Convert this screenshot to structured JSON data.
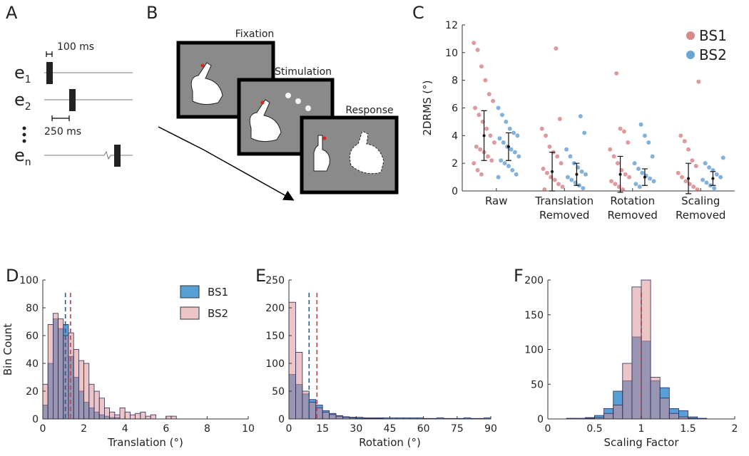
{
  "panel_labels": [
    "A",
    "B",
    "C",
    "D",
    "E",
    "F"
  ],
  "panel_a": {
    "scale_top": "100 ms",
    "scale_bottom": "250 ms",
    "rows": [
      {
        "base": "e",
        "sub": "1"
      },
      {
        "base": "e",
        "sub": "2"
      },
      {
        "base": "e",
        "sub": "n"
      }
    ]
  },
  "panel_b": {
    "stages": [
      "Fixation",
      "Stimulation",
      "Response"
    ]
  },
  "chart_data": [
    {
      "type": "strip",
      "ylabel": "2DRMS (°)",
      "ylim": [
        0,
        12
      ],
      "yticks": [
        0,
        2,
        4,
        6,
        8,
        10,
        12
      ],
      "categories": [
        [
          "Raw"
        ],
        [
          "Translation",
          "Removed"
        ],
        [
          "Rotation",
          "Removed"
        ],
        [
          "Scaling",
          "Removed"
        ]
      ],
      "legend": "upper right",
      "series": [
        {
          "name": "BS1",
          "color": "#c9565e",
          "points": [
            [
              10.7,
              10.2,
              9,
              8,
              7,
              6.5,
              6,
              5.5,
              5,
              4.5,
              4,
              3.5,
              3.2,
              3,
              2.8,
              2.5,
              2.2,
              2,
              1.5,
              1.2
            ],
            [
              10.3,
              5.2,
              4.5,
              4,
              3.2,
              2.8,
              2.5,
              2,
              1.6,
              1.3,
              1,
              0.8,
              0.5,
              0.3,
              0.1
            ],
            [
              8.5,
              4.5,
              4.3,
              3.5,
              3,
              2.5,
              2,
              1.5,
              1.2,
              1,
              0.7,
              0.5,
              0.3,
              0.1
            ],
            [
              7.9,
              4,
              3.6,
              3,
              2.2,
              1.8,
              1.3,
              1,
              0.7,
              0.5,
              0.3,
              0.1
            ]
          ],
          "means": [
            4,
            1.4,
            1.2,
            0.9
          ],
          "sds": [
            1.8,
            1.4,
            1.3,
            1.1
          ]
        },
        {
          "name": "BS2",
          "color": "#2f7fbf",
          "points": [
            [
              6,
              5.5,
              5,
              4.5,
              4.2,
              4,
              3.8,
              3.5,
              3.2,
              3,
              2.8,
              2.5,
              2.2,
              2,
              1.8,
              1.5,
              1.2,
              1
            ],
            [
              5.4,
              4.2,
              3,
              2.5,
              2,
              1.7,
              1.4,
              1.2,
              1,
              0.8,
              0.6,
              0.4,
              0.2
            ],
            [
              4.8,
              4,
              3.5,
              2.5,
              2,
              1.6,
              1.3,
              1.1,
              0.9,
              0.7,
              0.5,
              0.3
            ],
            [
              2.4,
              2,
              1.7,
              1.5,
              1.2,
              1,
              0.8,
              0.6,
              0.4,
              0.2
            ]
          ],
          "means": [
            3.2,
            1.2,
            1,
            0.9
          ],
          "sds": [
            1,
            0.8,
            0.6,
            0.5
          ]
        }
      ]
    },
    {
      "type": "histogram",
      "xlabel": "Translation (°)",
      "ylabel": "Bin Count",
      "xlim": [
        0,
        10
      ],
      "xticks": [
        0,
        2,
        4,
        6,
        8,
        10
      ],
      "ylim": [
        0,
        100
      ],
      "yticks": [
        0,
        20,
        40,
        60,
        80,
        100
      ],
      "legend": "upper right",
      "bins": [
        0,
        0.25,
        0.5,
        0.75,
        1,
        1.25,
        1.5,
        1.75,
        2,
        2.25,
        2.5,
        2.75,
        3,
        3.25,
        3.5,
        3.75,
        4,
        4.25,
        4.5,
        4.75,
        5,
        5.25,
        5.5,
        5.75,
        6,
        6.25,
        6.5,
        6.75,
        7,
        7.25,
        7.5,
        7.75,
        8
      ],
      "series": [
        {
          "name": "BS1",
          "color": "#3a8fd0",
          "mean": 1.1,
          "counts": [
            10,
            40,
            72,
            65,
            68,
            45,
            30,
            20,
            12,
            8,
            5,
            3,
            2,
            1,
            1,
            0,
            0,
            0,
            0,
            0,
            0,
            0,
            0,
            0,
            0,
            0,
            0,
            0,
            0,
            0,
            0,
            0
          ]
        },
        {
          "name": "BS2",
          "color": "#d98c90",
          "mean": 1.35,
          "counts": [
            25,
            68,
            76,
            72,
            60,
            62,
            50,
            42,
            40,
            25,
            20,
            15,
            8,
            5,
            3,
            8,
            5,
            3,
            4,
            5,
            2,
            3,
            0,
            0,
            2,
            2,
            0,
            0,
            0,
            0,
            0,
            0
          ]
        }
      ]
    },
    {
      "type": "histogram",
      "xlabel": "Rotation (°)",
      "xlim": [
        0,
        90
      ],
      "xticks": [
        0,
        15,
        30,
        45,
        60,
        75,
        90
      ],
      "ylim": [
        0,
        250
      ],
      "yticks": [
        0,
        50,
        100,
        150,
        200,
        250
      ],
      "bins": [
        0,
        3,
        6,
        9,
        12,
        15,
        18,
        21,
        24,
        27,
        30,
        33,
        36,
        39,
        42,
        45,
        48,
        51,
        54,
        57,
        60,
        63,
        66,
        69,
        72,
        75,
        78,
        81,
        84,
        87,
        90
      ],
      "series": [
        {
          "color": "#3a8fd0",
          "mean": 9,
          "counts": [
            80,
            62,
            45,
            35,
            25,
            15,
            10,
            6,
            4,
            3,
            3,
            2,
            2,
            2,
            2,
            2,
            2,
            2,
            2,
            2,
            1,
            1,
            2,
            1,
            1,
            1,
            2,
            1,
            1,
            2
          ]
        },
        {
          "color": "#d98c90",
          "mean": 12.5,
          "counts": [
            210,
            120,
            50,
            30,
            20,
            12,
            8,
            5,
            3,
            2,
            1,
            1,
            1,
            1,
            0,
            0,
            0,
            0,
            0,
            0,
            0,
            0,
            0,
            0,
            0,
            0,
            0,
            0,
            0,
            0
          ]
        }
      ]
    },
    {
      "type": "histogram",
      "xlabel": "Scaling Factor",
      "xlim": [
        0,
        2
      ],
      "xticks": [
        0,
        0.5,
        1,
        1.5,
        2
      ],
      "ylim": [
        0,
        200
      ],
      "yticks": [
        0,
        50,
        100,
        150,
        200
      ],
      "bins": [
        0.2,
        0.3,
        0.4,
        0.5,
        0.6,
        0.7,
        0.8,
        0.9,
        1,
        1.1,
        1.2,
        1.3,
        1.4,
        1.5,
        1.6,
        1.7,
        1.8
      ],
      "series": [
        {
          "color": "#3a8fd0",
          "mean": 1,
          "counts": [
            1,
            1,
            2,
            5,
            15,
            40,
            55,
            118,
            112,
            55,
            45,
            15,
            12,
            3,
            1,
            0
          ]
        },
        {
          "color": "#d98c90",
          "mean": 1,
          "counts": [
            0,
            0,
            1,
            2,
            8,
            20,
            80,
            190,
            200,
            60,
            30,
            8,
            3,
            1,
            0,
            0
          ]
        }
      ]
    }
  ]
}
